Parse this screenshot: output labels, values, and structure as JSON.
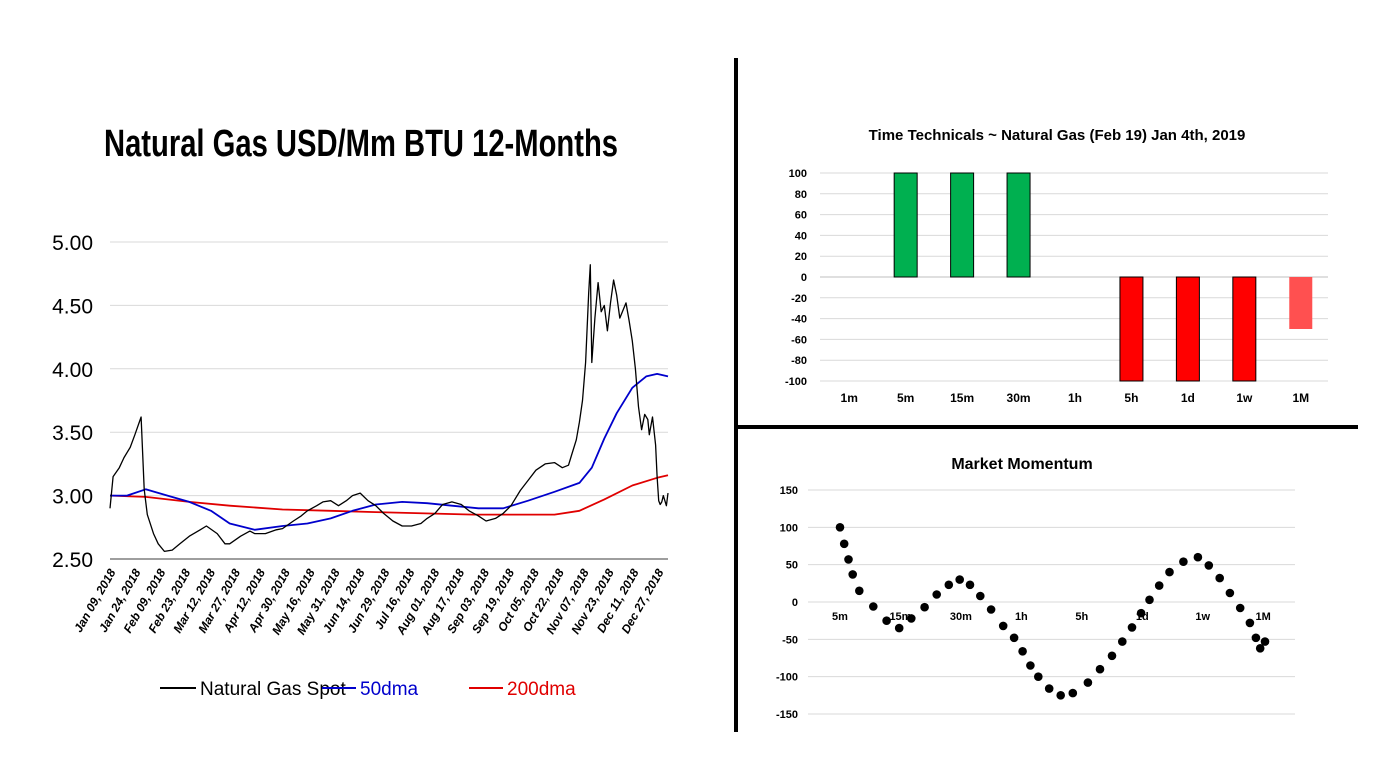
{
  "chart_data": [
    {
      "type": "line",
      "title": "Natural Gas USD/Mm BTU 12-Months",
      "xlabel": "",
      "ylabel": "",
      "ylim": [
        2.5,
        5.0
      ],
      "yticks": [
        "5.00",
        "4.50",
        "4.00",
        "3.50",
        "3.00",
        "2.50"
      ],
      "grid": true,
      "legend": "bottom",
      "x_tick_labels": [
        "Jan 09, 2018",
        "Jan 24, 2018",
        "Feb 09, 2018",
        "Feb 23, 2018",
        "Mar 12, 2018",
        "Mar 27, 2018",
        "Apr 12, 2018",
        "Apr 30, 2018",
        "May 16, 2018",
        "May 31, 2018",
        "Jun 14, 2018",
        "Jun 29, 2018",
        "Jul 16, 2018",
        "Aug 01, 2018",
        "Aug 17, 2018",
        "Sep 03, 2018",
        "Sep 19, 2018",
        "Oct 05, 2018",
        "Oct 22, 2018",
        "Nov 07, 2018",
        "Nov 23, 2018",
        "Dec 11, 2018",
        "Dec 27, 2018"
      ],
      "series": [
        {
          "name": "Natural Gas Spot",
          "color": "#000000",
          "points": [
            [
              "2018-01-09",
              2.9
            ],
            [
              "2018-01-11",
              3.15
            ],
            [
              "2018-01-15",
              3.22
            ],
            [
              "2018-01-18",
              3.3
            ],
            [
              "2018-01-22",
              3.38
            ],
            [
              "2018-01-25",
              3.48
            ],
            [
              "2018-01-29",
              3.62
            ],
            [
              "2018-01-31",
              3.05
            ],
            [
              "2018-02-02",
              2.85
            ],
            [
              "2018-02-06",
              2.7
            ],
            [
              "2018-02-09",
              2.62
            ],
            [
              "2018-02-13",
              2.56
            ],
            [
              "2018-02-18",
              2.57
            ],
            [
              "2018-02-23",
              2.62
            ],
            [
              "2018-03-01",
              2.68
            ],
            [
              "2018-03-08",
              2.73
            ],
            [
              "2018-03-12",
              2.76
            ],
            [
              "2018-03-19",
              2.7
            ],
            [
              "2018-03-24",
              2.62
            ],
            [
              "2018-03-27",
              2.62
            ],
            [
              "2018-04-03",
              2.68
            ],
            [
              "2018-04-09",
              2.72
            ],
            [
              "2018-04-12",
              2.7
            ],
            [
              "2018-04-19",
              2.7
            ],
            [
              "2018-04-26",
              2.73
            ],
            [
              "2018-04-30",
              2.74
            ],
            [
              "2018-05-07",
              2.8
            ],
            [
              "2018-05-12",
              2.84
            ],
            [
              "2018-05-16",
              2.88
            ],
            [
              "2018-05-22",
              2.92
            ],
            [
              "2018-05-26",
              2.95
            ],
            [
              "2018-05-31",
              2.96
            ],
            [
              "2018-06-05",
              2.92
            ],
            [
              "2018-06-10",
              2.96
            ],
            [
              "2018-06-14",
              3.0
            ],
            [
              "2018-06-19",
              3.02
            ],
            [
              "2018-06-24",
              2.96
            ],
            [
              "2018-06-29",
              2.92
            ],
            [
              "2018-07-04",
              2.86
            ],
            [
              "2018-07-10",
              2.8
            ],
            [
              "2018-07-16",
              2.76
            ],
            [
              "2018-07-22",
              2.76
            ],
            [
              "2018-07-28",
              2.78
            ],
            [
              "2018-08-01",
              2.82
            ],
            [
              "2018-08-06",
              2.86
            ],
            [
              "2018-08-11",
              2.93
            ],
            [
              "2018-08-17",
              2.95
            ],
            [
              "2018-08-23",
              2.93
            ],
            [
              "2018-08-28",
              2.88
            ],
            [
              "2018-09-03",
              2.84
            ],
            [
              "2018-09-08",
              2.8
            ],
            [
              "2018-09-14",
              2.82
            ],
            [
              "2018-09-19",
              2.86
            ],
            [
              "2018-09-24",
              2.92
            ],
            [
              "2018-09-30",
              3.04
            ],
            [
              "2018-10-05",
              3.12
            ],
            [
              "2018-10-10",
              3.2
            ],
            [
              "2018-10-16",
              3.25
            ],
            [
              "2018-10-22",
              3.26
            ],
            [
              "2018-10-27",
              3.22
            ],
            [
              "2018-10-31",
              3.24
            ],
            [
              "2018-11-02",
              3.32
            ],
            [
              "2018-11-05",
              3.44
            ],
            [
              "2018-11-07",
              3.58
            ],
            [
              "2018-11-09",
              3.75
            ],
            [
              "2018-11-11",
              4.05
            ],
            [
              "2018-11-13",
              4.6
            ],
            [
              "2018-11-14",
              4.82
            ],
            [
              "2018-11-15",
              4.05
            ],
            [
              "2018-11-17",
              4.4
            ],
            [
              "2018-11-19",
              4.68
            ],
            [
              "2018-11-21",
              4.45
            ],
            [
              "2018-11-23",
              4.5
            ],
            [
              "2018-11-25",
              4.3
            ],
            [
              "2018-11-27",
              4.52
            ],
            [
              "2018-11-29",
              4.7
            ],
            [
              "2018-12-01",
              4.58
            ],
            [
              "2018-12-03",
              4.4
            ],
            [
              "2018-12-05",
              4.46
            ],
            [
              "2018-12-07",
              4.52
            ],
            [
              "2018-12-09",
              4.38
            ],
            [
              "2018-12-11",
              4.22
            ],
            [
              "2018-12-13",
              4.0
            ],
            [
              "2018-12-15",
              3.7
            ],
            [
              "2018-12-17",
              3.52
            ],
            [
              "2018-12-19",
              3.64
            ],
            [
              "2018-12-21",
              3.6
            ],
            [
              "2018-12-22",
              3.48
            ],
            [
              "2018-12-24",
              3.62
            ],
            [
              "2018-12-26",
              3.4
            ],
            [
              "2018-12-27",
              3.15
            ],
            [
              "2018-12-28",
              2.96
            ],
            [
              "2018-12-29",
              2.93
            ],
            [
              "2018-12-30",
              2.95
            ],
            [
              "2018-12-31",
              3.0
            ],
            [
              "2019-01-02",
              2.92
            ],
            [
              "2019-01-03",
              3.02
            ]
          ]
        },
        {
          "name": "50dma",
          "color": "#0000cc",
          "points": [
            [
              "2018-01-09",
              3.0
            ],
            [
              "2018-01-20",
              3.0
            ],
            [
              "2018-02-01",
              3.05
            ],
            [
              "2018-02-15",
              3.0
            ],
            [
              "2018-03-01",
              2.95
            ],
            [
              "2018-03-15",
              2.88
            ],
            [
              "2018-03-27",
              2.78
            ],
            [
              "2018-04-12",
              2.73
            ],
            [
              "2018-04-30",
              2.76
            ],
            [
              "2018-05-16",
              2.78
            ],
            [
              "2018-05-31",
              2.82
            ],
            [
              "2018-06-14",
              2.88
            ],
            [
              "2018-06-29",
              2.93
            ],
            [
              "2018-07-16",
              2.95
            ],
            [
              "2018-08-01",
              2.94
            ],
            [
              "2018-08-17",
              2.92
            ],
            [
              "2018-09-03",
              2.9
            ],
            [
              "2018-09-19",
              2.9
            ],
            [
              "2018-10-05",
              2.96
            ],
            [
              "2018-10-22",
              3.03
            ],
            [
              "2018-11-07",
              3.1
            ],
            [
              "2018-11-15",
              3.22
            ],
            [
              "2018-11-23",
              3.45
            ],
            [
              "2018-12-01",
              3.65
            ],
            [
              "2018-12-11",
              3.85
            ],
            [
              "2018-12-20",
              3.94
            ],
            [
              "2018-12-27",
              3.96
            ],
            [
              "2019-01-03",
              3.94
            ]
          ]
        },
        {
          "name": "200dma",
          "color": "#e00000",
          "points": [
            [
              "2018-01-09",
              3.0
            ],
            [
              "2018-02-01",
              2.99
            ],
            [
              "2018-03-01",
              2.95
            ],
            [
              "2018-03-27",
              2.92
            ],
            [
              "2018-04-30",
              2.89
            ],
            [
              "2018-05-31",
              2.88
            ],
            [
              "2018-06-29",
              2.87
            ],
            [
              "2018-07-31",
              2.86
            ],
            [
              "2018-08-31",
              2.85
            ],
            [
              "2018-09-30",
              2.85
            ],
            [
              "2018-10-22",
              2.85
            ],
            [
              "2018-11-07",
              2.88
            ],
            [
              "2018-11-23",
              2.97
            ],
            [
              "2018-12-11",
              3.08
            ],
            [
              "2018-12-27",
              3.14
            ],
            [
              "2019-01-03",
              3.16
            ]
          ]
        }
      ]
    },
    {
      "type": "bar",
      "title": "Time Technicals ~  Natural Gas (Feb 19)  Jan 4th, 2019",
      "xlabel": "",
      "ylabel": "",
      "ylim": [
        -100,
        100
      ],
      "yticks": [
        100,
        80,
        60,
        40,
        20,
        0,
        -20,
        -40,
        -60,
        -80,
        -100
      ],
      "grid": true,
      "categories": [
        "1m",
        "5m",
        "15m",
        "30m",
        "1h",
        "5h",
        "1d",
        "1w",
        "1M"
      ],
      "values": [
        0,
        100,
        100,
        100,
        0,
        -100,
        -100,
        -100,
        -50
      ],
      "colors": [
        "#00b050",
        "#00b050",
        "#00b050",
        "#00b050",
        "#00b050",
        "#ff0000",
        "#ff0000",
        "#ff0000",
        "#ff5050"
      ]
    },
    {
      "type": "scatter",
      "title": "Market Momentum",
      "xlabel": "",
      "ylabel": "",
      "ylim": [
        -150,
        150
      ],
      "yticks": [
        150,
        100,
        50,
        0,
        -50,
        -100,
        -150
      ],
      "grid": true,
      "category_labels": [
        "5m",
        "15m",
        "30m",
        "1h",
        "5h",
        "1d",
        "1w",
        "1M"
      ],
      "x": [
        0.0,
        0.07,
        0.14,
        0.21,
        0.32,
        0.55,
        0.77,
        0.98,
        1.18,
        1.4,
        1.6,
        1.8,
        1.98,
        2.15,
        2.32,
        2.5,
        2.7,
        2.88,
        3.02,
        3.15,
        3.28,
        3.46,
        3.65,
        3.85,
        4.1,
        4.3,
        4.5,
        4.67,
        4.83,
        4.98,
        5.12,
        5.28,
        5.45,
        5.68,
        5.92,
        6.1,
        6.28,
        6.45,
        6.62,
        6.78,
        6.88,
        6.95,
        7.03
      ],
      "y": [
        100,
        78,
        57,
        37,
        15,
        -6,
        -25,
        -35,
        -22,
        -7,
        10,
        23,
        30,
        23,
        8,
        -10,
        -32,
        -48,
        -66,
        -85,
        -100,
        -116,
        -125,
        -122,
        -108,
        -90,
        -72,
        -53,
        -34,
        -15,
        3,
        22,
        40,
        54,
        60,
        49,
        32,
        12,
        -8,
        -28,
        -48,
        -62,
        -53
      ]
    }
  ],
  "legend_items": [
    "Natural Gas Spot",
    "50dma",
    "200dma"
  ]
}
